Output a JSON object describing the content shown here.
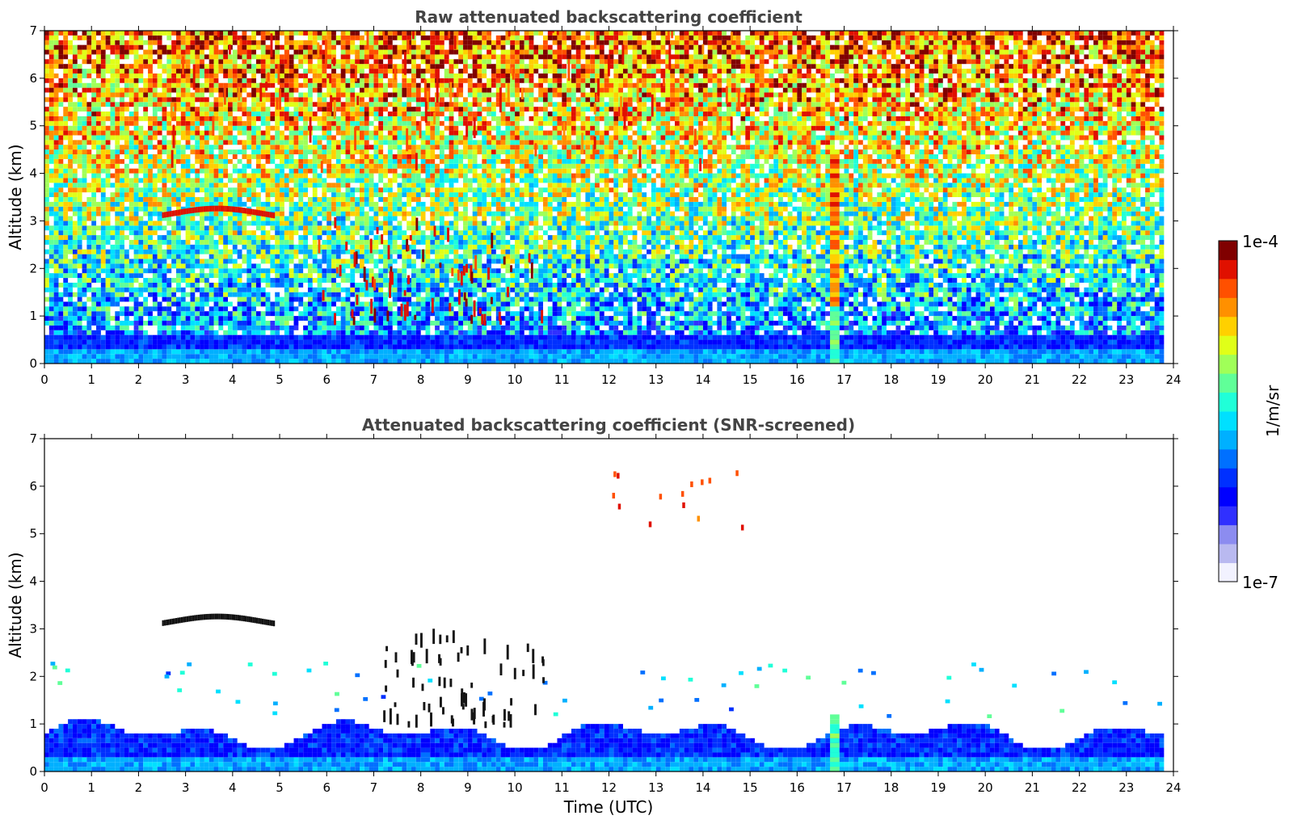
{
  "chart_data": [
    {
      "type": "heatmap",
      "title": "Raw attenuated backscattering coefficient",
      "xlabel": "",
      "ylabel": "Altitude (km)",
      "xlim": [
        0,
        24
      ],
      "ylim": [
        0,
        7
      ],
      "x_ticks": [
        "0",
        "1",
        "2",
        "3",
        "4",
        "5",
        "6",
        "7",
        "8",
        "9",
        "10",
        "11",
        "12",
        "13",
        "14",
        "15",
        "16",
        "17",
        "18",
        "19",
        "20",
        "21",
        "22",
        "23",
        "24"
      ],
      "y_ticks": [
        "0",
        "1",
        "2",
        "3",
        "4",
        "5",
        "6",
        "7"
      ],
      "grid": false,
      "colorscale": "jet (log)",
      "data_end_hour": 23.8,
      "features": [
        {
          "name": "boundary layer",
          "kind": "layer",
          "x": [
            0,
            23.8
          ],
          "y": [
            0,
            0.6
          ]
        },
        {
          "name": "aerosol layer",
          "kind": "arc",
          "x": [
            2.5,
            4.9
          ],
          "y": [
            3.0,
            3.2
          ]
        },
        {
          "name": "low clouds",
          "kind": "scatter",
          "x": [
            5.8,
            10.6
          ],
          "y": [
            0.8,
            2.9
          ]
        },
        {
          "name": "high cirrus",
          "kind": "columns",
          "x": [
            2.5,
            15.0
          ],
          "y": [
            4.0,
            7.0
          ]
        },
        {
          "name": "precipitation streak",
          "kind": "streak",
          "x": [
            16.7,
            16.9
          ],
          "y": [
            0,
            4.5
          ]
        }
      ]
    },
    {
      "type": "heatmap",
      "title": "Attenuated backscattering coefficient (SNR-screened)",
      "xlabel": "Time (UTC)",
      "ylabel": "Altitude (km)",
      "xlim": [
        0,
        24
      ],
      "ylim": [
        0,
        7
      ],
      "x_ticks": [
        "0",
        "1",
        "2",
        "3",
        "4",
        "5",
        "6",
        "7",
        "8",
        "9",
        "10",
        "11",
        "12",
        "13",
        "14",
        "15",
        "16",
        "17",
        "18",
        "19",
        "20",
        "21",
        "22",
        "23",
        "24"
      ],
      "y_ticks": [
        "0",
        "1",
        "2",
        "3",
        "4",
        "5",
        "6",
        "7"
      ],
      "grid": false,
      "colorscale": "jet (log)",
      "data_end_hour": 23.8,
      "features": [
        {
          "name": "boundary layer",
          "kind": "layer",
          "x": [
            0,
            23.8
          ],
          "y": [
            0,
            1.1
          ]
        },
        {
          "name": "aerosol layer",
          "kind": "arc",
          "x": [
            2.5,
            4.9
          ],
          "y": [
            3.0,
            3.2
          ]
        },
        {
          "name": "low clouds",
          "kind": "scatter",
          "x": [
            7.2,
            10.6
          ],
          "y": [
            0.9,
            2.9
          ]
        },
        {
          "name": "cirrus fragments",
          "kind": "scatter",
          "x": [
            12.0,
            15.0
          ],
          "y": [
            5.0,
            6.3
          ]
        },
        {
          "name": "precipitation streak",
          "kind": "streak",
          "x": [
            16.7,
            16.9
          ],
          "y": [
            0,
            1.1
          ]
        }
      ]
    }
  ],
  "colorbar": {
    "label": "1/m/sr",
    "max_label": "1e-4",
    "min_label": "1e-7",
    "range": [
      1e-07,
      0.0001
    ],
    "scale": "log",
    "colors": [
      "#f2f2ff",
      "#b9b9f0",
      "#8c8cf0",
      "#3030ff",
      "#0000ff",
      "#0030ff",
      "#0070ff",
      "#00b0ff",
      "#00e0ff",
      "#20ffd8",
      "#60ff98",
      "#a0ff58",
      "#e0ff18",
      "#ffd000",
      "#ff9000",
      "#ff5000",
      "#e01000",
      "#800000"
    ]
  }
}
